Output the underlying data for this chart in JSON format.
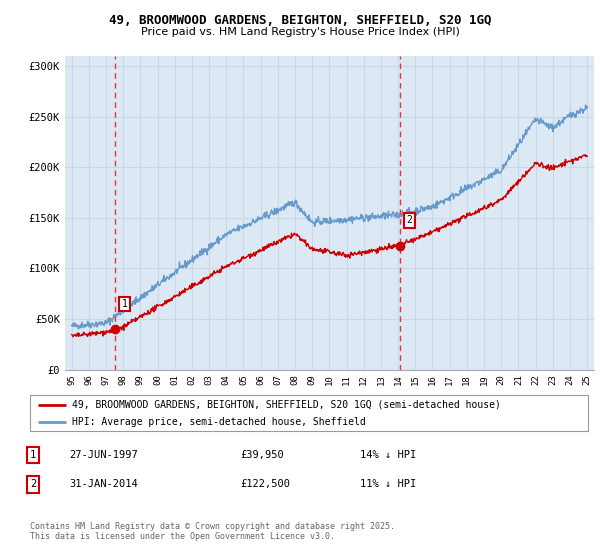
{
  "title_line1": "49, BROOMWOOD GARDENS, BEIGHTON, SHEFFIELD, S20 1GQ",
  "title_line2": "Price paid vs. HM Land Registry's House Price Index (HPI)",
  "legend_label1": "49, BROOMWOOD GARDENS, BEIGHTON, SHEFFIELD, S20 1GQ (semi-detached house)",
  "legend_label2": "HPI: Average price, semi-detached house, Sheffield",
  "annotation1_date": "27-JUN-1997",
  "annotation1_price": "£39,950",
  "annotation1_hpi": "14% ↓ HPI",
  "annotation2_date": "31-JAN-2014",
  "annotation2_price": "£122,500",
  "annotation2_hpi": "11% ↓ HPI",
  "copyright": "Contains HM Land Registry data © Crown copyright and database right 2025.\nThis data is licensed under the Open Government Licence v3.0.",
  "yticks": [
    0,
    50000,
    100000,
    150000,
    200000,
    250000,
    300000
  ],
  "ytick_labels": [
    "£0",
    "£50K",
    "£100K",
    "£150K",
    "£200K",
    "£250K",
    "£300K"
  ],
  "background_color": "#dce9f5",
  "red_line_color": "#cc0000",
  "blue_line_color": "#6699cc",
  "grid_color": "#c8d8e8",
  "vline_color": "#ee3333",
  "sale1_x": 1997.5,
  "sale1_y": 39950,
  "sale2_x": 2014.08,
  "sale2_y": 122500,
  "xlim_left": 1994.6,
  "xlim_right": 2025.4,
  "ylim_bottom": 0,
  "ylim_top": 310000
}
